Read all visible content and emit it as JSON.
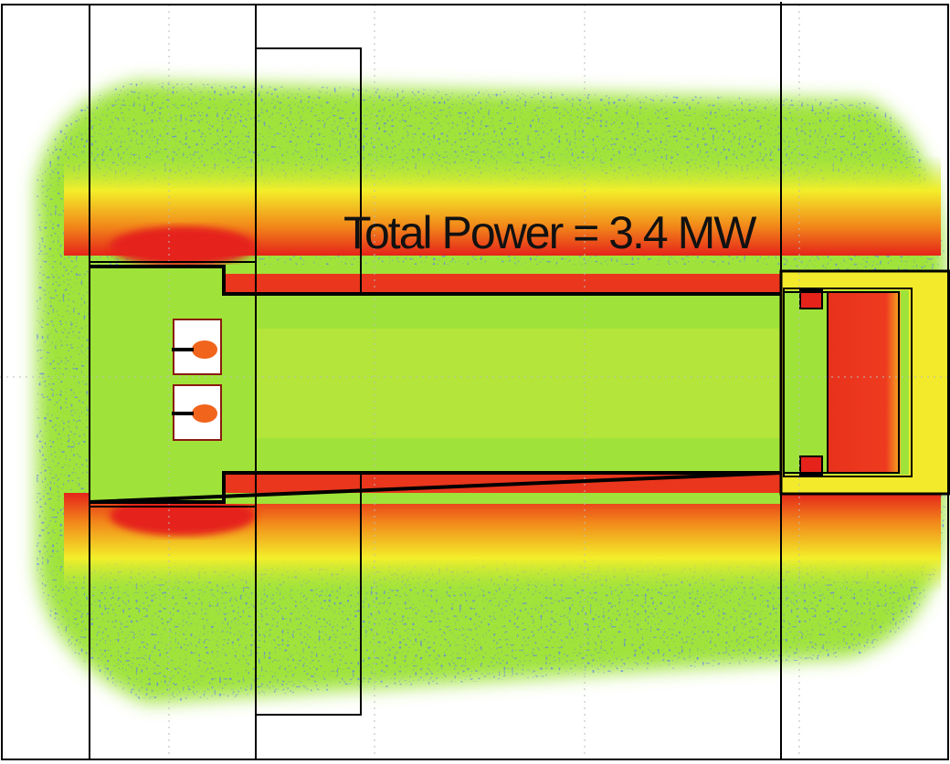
{
  "annotation": {
    "text": "Total Power = 3.4 MW"
  }
}
